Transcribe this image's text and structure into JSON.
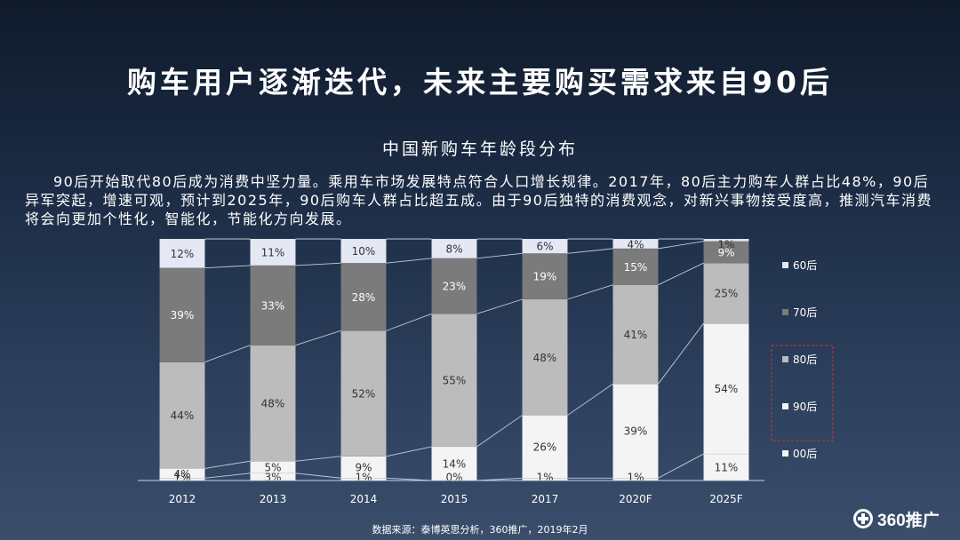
{
  "page": {
    "title": "购车用户逐渐迭代，未来主要购买需求来自90后",
    "subtitle": "中国新购车年龄段分布",
    "description": "90后开始取代80后成为消费中坚力量。乘用车市场发展特点符合人口增长规律。2017年，80后主力购车人群占比48%，90后异军突起，增速可观，预计到2025年，90后购车人群占比超五成。由于90后独特的消费观念，对新兴事物接受度高，推测汽车消费将会向更加个性化，智能化，节能化方向发展。",
    "source": "数据来源：泰博英思分析，360推广，2019年2月",
    "logo_text": "360推广"
  },
  "chart_data": {
    "type": "bar",
    "stacked": true,
    "percent": true,
    "title": "中国新购车年龄段分布",
    "categories": [
      "2012",
      "2013",
      "2014",
      "2015",
      "2017",
      "2020F",
      "2025F"
    ],
    "series": [
      {
        "name": "00后",
        "color": "#f4f4f4",
        "values": [
          1,
          3,
          1,
          0,
          1,
          1,
          11
        ]
      },
      {
        "name": "90后",
        "color": "#f4f4f4",
        "values": [
          4,
          5,
          9,
          14,
          26,
          39,
          54
        ]
      },
      {
        "name": "80后",
        "color": "#bcbcbc",
        "values": [
          44,
          48,
          52,
          55,
          48,
          41,
          25
        ]
      },
      {
        "name": "70后",
        "color": "#7b7b7b",
        "values": [
          39,
          33,
          28,
          23,
          19,
          15,
          9
        ]
      },
      {
        "name": "60后",
        "color": "#e4e8f4",
        "values": [
          12,
          11,
          10,
          8,
          6,
          4,
          1
        ]
      }
    ],
    "legend": [
      "60后",
      "70后",
      "80后",
      "90后",
      "00后"
    ],
    "legend_position": "right",
    "highlight": "90后",
    "ylim": [
      0,
      100
    ]
  }
}
